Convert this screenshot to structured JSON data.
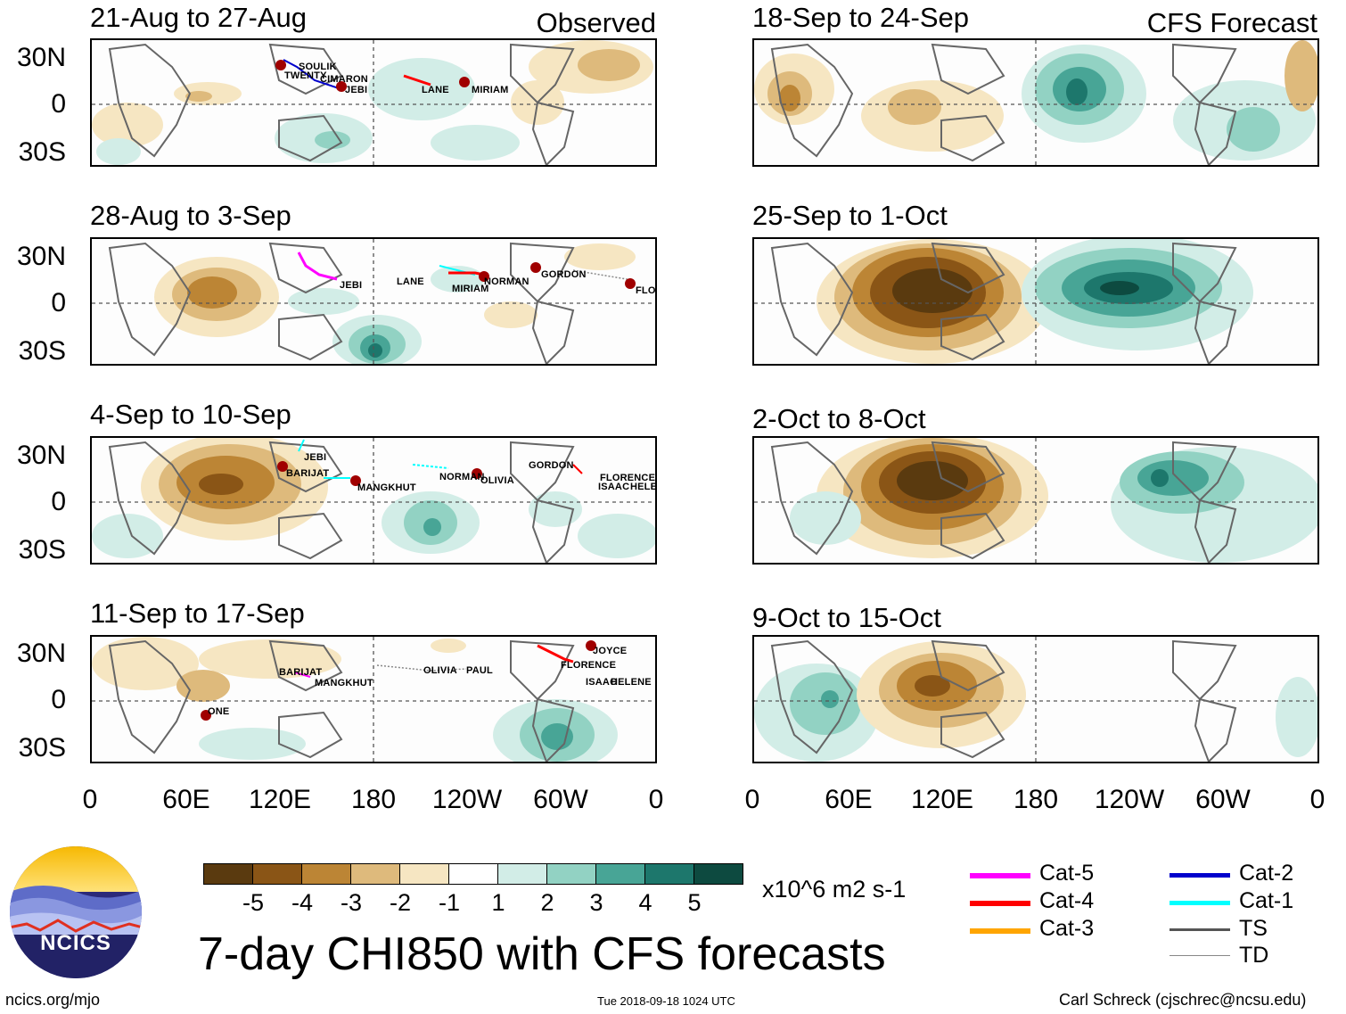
{
  "observed_tag": "Observed",
  "forecast_tag": "CFS Forecast",
  "lat_labels": [
    "30N",
    "0",
    "30S"
  ],
  "lon_labels": [
    "0",
    "60E",
    "120E",
    "180",
    "120W",
    "60W",
    "0"
  ],
  "panels": [
    {
      "title": "21-Aug to 27-Aug",
      "storms": [
        "SOULIK",
        "TWENTY",
        "CIMARON",
        "JEBI",
        "LANE",
        "MIRIAM"
      ]
    },
    {
      "title": "28-Aug to 3-Sep",
      "storms": [
        "JEBI",
        "LANE",
        "MIRIAM",
        "NORMAN",
        "GORDON",
        "FLORENCE"
      ]
    },
    {
      "title": "4-Sep to 10-Sep",
      "storms": [
        "JEBI",
        "BARIJAT",
        "MANGKHUT",
        "NORMAN",
        "OLIVIA",
        "GORDON",
        "FLORENCE",
        "ISAAC",
        "HELENE"
      ]
    },
    {
      "title": "11-Sep to 17-Sep",
      "storms": [
        "BARIJAT",
        "MANGKHUT",
        "OLIVIA",
        "PAUL",
        "JOYCE",
        "FLORENCE",
        "ISAAC",
        "HELENE",
        "ONE"
      ]
    },
    {
      "title": "18-Sep to 24-Sep",
      "storms": []
    },
    {
      "title": "25-Sep to 1-Oct",
      "storms": []
    },
    {
      "title": "2-Oct to 8-Oct",
      "storms": []
    },
    {
      "title": "9-Oct to 15-Oct",
      "storms": []
    }
  ],
  "colorbar": {
    "colors": [
      "#5a3a0f",
      "#8a5516",
      "#bc8535",
      "#deba7c",
      "#f6e6c2",
      "#ffffff",
      "#d2ede7",
      "#92d2c3",
      "#48a596",
      "#1d776c",
      "#0d4a40"
    ],
    "labels": [
      "-5",
      "-4",
      "-3",
      "-2",
      "-1",
      "1",
      "2",
      "3",
      "4",
      "5"
    ],
    "units": "x10^6 m2 s-1"
  },
  "legend": [
    {
      "label": "Cat-5",
      "color": "#ff00ff"
    },
    {
      "label": "Cat-4",
      "color": "#ff0000"
    },
    {
      "label": "Cat-3",
      "color": "#ffa500"
    },
    {
      "label": "Cat-2",
      "color": "#0000cc"
    },
    {
      "label": "Cat-1",
      "color": "#00ffff"
    },
    {
      "label": "TS",
      "color": "#555555"
    },
    {
      "label": "TD",
      "color": "#888888"
    }
  ],
  "logo_text": "NCICS",
  "main_title": "7-day CHI850 with CFS forecasts",
  "footer": {
    "site": "ncics.org/mjo",
    "timestamp": "Tue 2018-09-18 1024 UTC",
    "author": "Carl Schreck (cjschrec@ncsu.edu)"
  }
}
